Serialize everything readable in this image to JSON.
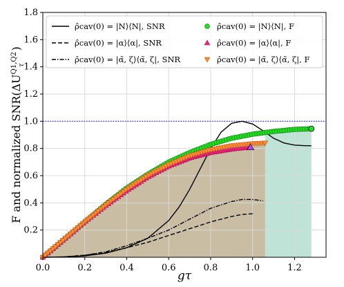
{
  "chart_data": {
    "type": "line",
    "xlabel": "gτ",
    "ylabel": "F and normalized SNR(ΔU",
    "ylabel_superscript": "Q1,Q2",
    "ylabel_subscript": "τ",
    "ylabel_close": ")",
    "xlim": [
      0,
      1.35
    ],
    "ylim": [
      0,
      1.8
    ],
    "xticks": [
      0.0,
      0.2,
      0.4,
      0.6,
      0.8,
      1.0,
      1.2
    ],
    "xtick_labels": [
      "0.0",
      "0.2",
      "0.4",
      "0.6",
      "0.8",
      "1.0",
      "1.2"
    ],
    "yticks": [
      0.2,
      0.4,
      0.6,
      0.8,
      1.0,
      1.2,
      1.4,
      1.6,
      1.8
    ],
    "ytick_labels": [
      "0.2",
      "0.4",
      "0.6",
      "0.8",
      "1.0",
      "1.2",
      "1.4",
      "1.6",
      "1.8"
    ],
    "grid": true,
    "legend_position": "top",
    "reference_line": {
      "y": 1.0,
      "color": "#1a1aff",
      "style": "dotted"
    },
    "fill_regions": [
      {
        "x_start": 0,
        "x_end": 1.06,
        "color": "#c9bda3"
      },
      {
        "x_start": 1.06,
        "x_end": 1.28,
        "color": "#bfe3d6"
      }
    ],
    "series": [
      {
        "name": "ρ̂cav(0) = |N⟩⟨N|, SNR",
        "style": "solid",
        "color": "#000000",
        "x": [
          0,
          0.1,
          0.2,
          0.3,
          0.4,
          0.5,
          0.6,
          0.65,
          0.7,
          0.75,
          0.8,
          0.85,
          0.9,
          0.95,
          1.0,
          1.05,
          1.1,
          1.15,
          1.2,
          1.25,
          1.28
        ],
        "y": [
          0,
          0.002,
          0.01,
          0.03,
          0.07,
          0.14,
          0.27,
          0.37,
          0.5,
          0.65,
          0.8,
          0.92,
          0.985,
          1.0,
          0.98,
          0.93,
          0.875,
          0.84,
          0.825,
          0.82,
          0.82
        ]
      },
      {
        "name": "ρ̂cav(0) = |α⟩⟨α|, SNR",
        "style": "dashed",
        "color": "#000000",
        "x": [
          0,
          0.1,
          0.2,
          0.3,
          0.4,
          0.5,
          0.6,
          0.7,
          0.8,
          0.9,
          0.95,
          1.0
        ],
        "y": [
          0,
          0.003,
          0.015,
          0.035,
          0.07,
          0.11,
          0.16,
          0.21,
          0.26,
          0.3,
          0.315,
          0.32
        ]
      },
      {
        "name": "ρ̂cav(0) = |α̃, ζ⟩⟨α̃, ζ|, SNR",
        "style": "dashdot",
        "color": "#000000",
        "x": [
          0,
          0.1,
          0.2,
          0.3,
          0.4,
          0.5,
          0.6,
          0.7,
          0.8,
          0.9,
          0.95,
          1.0,
          1.05
        ],
        "y": [
          0,
          0.003,
          0.015,
          0.04,
          0.085,
          0.14,
          0.2,
          0.28,
          0.36,
          0.41,
          0.425,
          0.425,
          0.415
        ]
      },
      {
        "name": "ρ̂cav(0) = |N⟩⟨N|, F",
        "marker": "circle",
        "color": "#22dd22",
        "x": [
          0,
          0.1,
          0.2,
          0.3,
          0.4,
          0.5,
          0.6,
          0.7,
          0.8,
          0.9,
          1.0,
          1.1,
          1.2,
          1.28
        ],
        "y": [
          0,
          0.13,
          0.26,
          0.39,
          0.51,
          0.61,
          0.7,
          0.77,
          0.83,
          0.875,
          0.905,
          0.925,
          0.94,
          0.945
        ]
      },
      {
        "name": "ρ̂cav(0) = |α⟩⟨α|, F",
        "marker": "triangle-up",
        "color": "#ee2277",
        "x": [
          0,
          0.1,
          0.2,
          0.3,
          0.4,
          0.5,
          0.6,
          0.7,
          0.8,
          0.9,
          0.99
        ],
        "y": [
          0,
          0.13,
          0.26,
          0.38,
          0.49,
          0.59,
          0.67,
          0.73,
          0.77,
          0.795,
          0.81
        ]
      },
      {
        "name": "ρ̂cav(0) = |α̃, ζ⟩⟨α̃, ζ|, F",
        "marker": "triangle-down",
        "color": "#ff8833",
        "x": [
          0,
          0.1,
          0.2,
          0.3,
          0.4,
          0.5,
          0.6,
          0.7,
          0.8,
          0.9,
          1.0,
          1.06
        ],
        "y": [
          0,
          0.13,
          0.26,
          0.385,
          0.5,
          0.6,
          0.68,
          0.745,
          0.79,
          0.82,
          0.835,
          0.84
        ]
      }
    ]
  }
}
